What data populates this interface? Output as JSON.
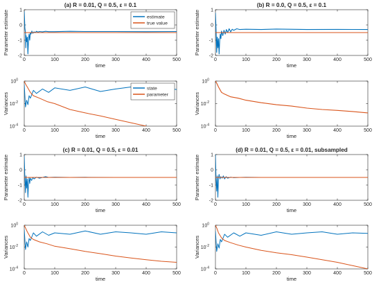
{
  "chart_data": [
    {
      "type": "line",
      "title": "(a) R = 0.01, Q = 0.5, ε = 0.1",
      "xlabel": "time",
      "ylabel": "Parameter estimate",
      "xlim": [
        0,
        500
      ],
      "ylim": [
        -2,
        1
      ],
      "xticks": [
        0,
        100,
        200,
        300,
        400,
        500
      ],
      "yticks": [
        -2,
        -1,
        0,
        1
      ],
      "grid": false,
      "legend": "top-right",
      "series": [
        {
          "name": "estimate",
          "color": "#0072BD",
          "x": [
            0,
            2,
            4,
            5,
            6,
            8,
            10,
            12,
            14,
            16,
            18,
            20,
            22,
            25,
            28,
            32,
            36,
            40,
            45,
            50,
            60,
            70,
            80,
            100,
            150,
            200,
            300,
            400,
            500
          ],
          "y": [
            0.9,
            -0.2,
            -0.5,
            -1.5,
            -0.7,
            -1.1,
            -0.8,
            -1.9,
            -0.9,
            -0.6,
            -1.0,
            -0.5,
            -0.6,
            -0.4,
            -0.55,
            -0.45,
            -0.5,
            -0.42,
            -0.47,
            -0.43,
            -0.45,
            -0.42,
            -0.44,
            -0.44,
            -0.42,
            -0.43,
            -0.43,
            -0.44,
            -0.43
          ]
        },
        {
          "name": "true value",
          "color": "#D95319",
          "x": [
            0,
            500
          ],
          "y": [
            -0.5,
            -0.5
          ]
        }
      ]
    },
    {
      "type": "line",
      "title": "(b) R = 0.0, Q = 0.5, ε = 0.1",
      "xlabel": "time",
      "ylabel": "Parameter estimate",
      "xlim": [
        0,
        500
      ],
      "ylim": [
        -2,
        1
      ],
      "xticks": [
        0,
        100,
        200,
        300,
        400,
        500
      ],
      "yticks": [
        -2,
        -1,
        0,
        1
      ],
      "grid": false,
      "series": [
        {
          "color": "#0072BD",
          "x": [
            0,
            2,
            4,
            6,
            8,
            10,
            12,
            14,
            16,
            18,
            20,
            24,
            28,
            32,
            36,
            40,
            45,
            50,
            55,
            60,
            70,
            80,
            100,
            150,
            200,
            300,
            400,
            500
          ],
          "y": [
            0.8,
            -0.3,
            -1.8,
            -0.8,
            -1.5,
            -0.9,
            -1.9,
            -1.0,
            -0.6,
            -0.9,
            -0.4,
            -0.7,
            -0.35,
            -0.6,
            -0.3,
            -0.5,
            -0.25,
            -0.45,
            -0.28,
            -0.35,
            -0.25,
            -0.3,
            -0.28,
            -0.3,
            -0.27,
            -0.3,
            -0.29,
            -0.3
          ]
        },
        {
          "color": "#D95319",
          "x": [
            0,
            500
          ],
          "y": [
            -0.5,
            -0.5
          ]
        }
      ]
    },
    {
      "type": "line",
      "ylabel": "Variances",
      "xlabel": "time",
      "yscale": "log",
      "xlim": [
        0,
        500
      ],
      "ylim": [
        0.0001,
        1
      ],
      "xticks": [
        0,
        100,
        200,
        300,
        400,
        500
      ],
      "yticks": [
        0.0001,
        0.01,
        1
      ],
      "ytick_labels": [
        {
          "b": "10",
          "e": "-4"
        },
        {
          "b": "10",
          "e": "-2"
        },
        {
          "b": "10",
          "e": "0"
        }
      ],
      "grid": false,
      "legend": "top-right",
      "series": [
        {
          "name": "state",
          "color": "#0072BD",
          "x": [
            0,
            4,
            8,
            12,
            16,
            20,
            30,
            40,
            60,
            80,
            100,
            150,
            200,
            250,
            300,
            350,
            400,
            450,
            500
          ],
          "y": [
            0.5,
            0.005,
            0.02,
            0.008,
            0.05,
            0.03,
            0.15,
            0.08,
            0.2,
            0.1,
            0.25,
            0.15,
            0.3,
            0.12,
            0.2,
            0.3,
            0.15,
            0.25,
            0.18
          ]
        },
        {
          "name": "parameter",
          "color": "#D95319",
          "x": [
            0,
            5,
            10,
            20,
            30,
            50,
            75,
            100,
            150,
            200,
            250,
            300,
            350,
            400
          ],
          "y": [
            1,
            0.5,
            0.3,
            0.1,
            0.05,
            0.03,
            0.015,
            0.01,
            0.003,
            0.0015,
            0.0008,
            0.0004,
            0.0002,
            0.0001
          ]
        }
      ]
    },
    {
      "type": "line",
      "ylabel": "Variances",
      "xlabel": "time",
      "yscale": "log",
      "xlim": [
        0,
        500
      ],
      "ylim": [
        0.0001,
        1
      ],
      "xticks": [
        0,
        100,
        200,
        300,
        400,
        500
      ],
      "yticks": [
        0.0001,
        0.01,
        1
      ],
      "ytick_labels": [
        {
          "b": "10",
          "e": "-4"
        },
        {
          "b": "10",
          "e": "-2"
        },
        {
          "b": "10",
          "e": "0"
        }
      ],
      "grid": false,
      "series": [
        {
          "color": "#D95319",
          "x": [
            0,
            5,
            10,
            20,
            30,
            50,
            75,
            100,
            150,
            200,
            250,
            300,
            350,
            400,
            450,
            500
          ],
          "y": [
            1,
            0.6,
            0.3,
            0.1,
            0.07,
            0.04,
            0.03,
            0.02,
            0.012,
            0.008,
            0.006,
            0.004,
            0.003,
            0.0025,
            0.002,
            0.0015
          ]
        }
      ]
    },
    {
      "type": "line",
      "title": "(c) R = 0.01, Q = 0.5, ε = 0.01",
      "xlabel": "time",
      "ylabel": "Parameter estimate",
      "xlim": [
        0,
        500
      ],
      "ylim": [
        -2,
        1
      ],
      "xticks": [
        0,
        100,
        200,
        300,
        400,
        500
      ],
      "yticks": [
        -2,
        -1,
        0,
        1
      ],
      "grid": false,
      "series": [
        {
          "color": "#0072BD",
          "x": [
            0,
            2,
            4,
            6,
            8,
            10,
            12,
            14,
            16,
            18,
            20,
            24,
            28,
            32,
            40,
            50,
            60,
            70,
            80,
            100,
            150,
            200,
            300,
            400,
            500
          ],
          "y": [
            0.9,
            -0.5,
            -1.5,
            -0.4,
            -1.2,
            -0.6,
            -1.8,
            -0.8,
            -0.5,
            -0.9,
            -0.55,
            -0.7,
            -0.5,
            -0.6,
            -0.48,
            -0.55,
            -0.5,
            -0.45,
            -0.5,
            -0.48,
            -0.5,
            -0.49,
            -0.5,
            -0.5,
            -0.5
          ]
        },
        {
          "color": "#D95319",
          "x": [
            0,
            500
          ],
          "y": [
            -0.5,
            -0.5
          ]
        }
      ]
    },
    {
      "type": "line",
      "title": "(d) R = 0.01, Q = 0.5, ε = 0.01, subsampled",
      "xlabel": "time",
      "ylabel": "Parameter estimate",
      "xlim": [
        0,
        500
      ],
      "ylim": [
        -2,
        1
      ],
      "xticks": [
        0,
        100,
        200,
        300,
        400,
        500
      ],
      "yticks": [
        -2,
        -1,
        0,
        1
      ],
      "grid": false,
      "series": [
        {
          "color": "#0072BD",
          "x": [
            0,
            2,
            4,
            6,
            8,
            10,
            12,
            15,
            18,
            22,
            26,
            30,
            35,
            40,
            50,
            60,
            80,
            100,
            150,
            200,
            300,
            400,
            500
          ],
          "y": [
            1.0,
            -0.6,
            -1.4,
            -0.4,
            -1.8,
            -0.5,
            -0.3,
            -0.6,
            -0.45,
            -0.55,
            -0.4,
            -0.6,
            -0.45,
            -0.55,
            -0.48,
            -0.52,
            -0.5,
            -0.49,
            -0.5,
            -0.5,
            -0.5,
            -0.5,
            -0.5
          ]
        },
        {
          "color": "#D95319",
          "x": [
            0,
            500
          ],
          "y": [
            -0.5,
            -0.5
          ]
        }
      ]
    },
    {
      "type": "line",
      "ylabel": "Variances",
      "xlabel": "time",
      "yscale": "log",
      "xlim": [
        0,
        500
      ],
      "ylim": [
        0.0001,
        1
      ],
      "xticks": [
        0,
        100,
        200,
        300,
        400,
        500
      ],
      "yticks": [
        0.0001,
        0.01,
        1
      ],
      "ytick_labels": [
        {
          "b": "10",
          "e": "-4"
        },
        {
          "b": "10",
          "e": "-2"
        },
        {
          "b": "10",
          "e": "0"
        }
      ],
      "grid": false,
      "series": [
        {
          "color": "#0072BD",
          "x": [
            0,
            4,
            8,
            12,
            16,
            20,
            30,
            40,
            60,
            80,
            100,
            150,
            200,
            250,
            300,
            350,
            400,
            450,
            500
          ],
          "y": [
            0.4,
            0.006,
            0.03,
            0.01,
            0.06,
            0.04,
            0.2,
            0.1,
            0.25,
            0.12,
            0.2,
            0.15,
            0.3,
            0.15,
            0.25,
            0.2,
            0.15,
            0.25,
            0.2
          ]
        },
        {
          "color": "#D95319",
          "x": [
            0,
            5,
            10,
            20,
            30,
            50,
            75,
            100,
            150,
            200,
            250,
            300,
            350,
            400,
            450,
            500
          ],
          "y": [
            1,
            0.5,
            0.25,
            0.08,
            0.05,
            0.03,
            0.02,
            0.012,
            0.007,
            0.004,
            0.0025,
            0.0015,
            0.001,
            0.0007,
            0.0005,
            0.0004
          ]
        }
      ]
    },
    {
      "type": "line",
      "ylabel": "Variances",
      "xlabel": "time",
      "yscale": "log",
      "xlim": [
        0,
        500
      ],
      "ylim": [
        0.0001,
        1
      ],
      "xticks": [
        0,
        100,
        200,
        300,
        400,
        500
      ],
      "yticks": [
        0.0001,
        0.01,
        1
      ],
      "ytick_labels": [
        {
          "b": "10",
          "e": "-4"
        },
        {
          "b": "10",
          "e": "-2"
        },
        {
          "b": "10",
          "e": "0"
        }
      ],
      "grid": false,
      "series": [
        {
          "color": "#0072BD",
          "x": [
            0,
            4,
            8,
            12,
            16,
            20,
            30,
            40,
            60,
            80,
            100,
            150,
            200,
            250,
            300,
            350,
            400,
            450,
            500
          ],
          "y": [
            0.3,
            0.004,
            0.02,
            0.008,
            0.05,
            0.03,
            0.15,
            0.08,
            0.2,
            0.1,
            0.2,
            0.12,
            0.25,
            0.15,
            0.2,
            0.25,
            0.15,
            0.2,
            0.18
          ]
        },
        {
          "color": "#D95319",
          "x": [
            0,
            5,
            10,
            20,
            30,
            50,
            75,
            100,
            150,
            200,
            250,
            300,
            350,
            400,
            450,
            500
          ],
          "y": [
            1,
            0.5,
            0.2,
            0.07,
            0.04,
            0.025,
            0.015,
            0.01,
            0.005,
            0.003,
            0.002,
            0.0012,
            0.0007,
            0.0004,
            0.0002,
            0.0001
          ]
        }
      ]
    }
  ]
}
